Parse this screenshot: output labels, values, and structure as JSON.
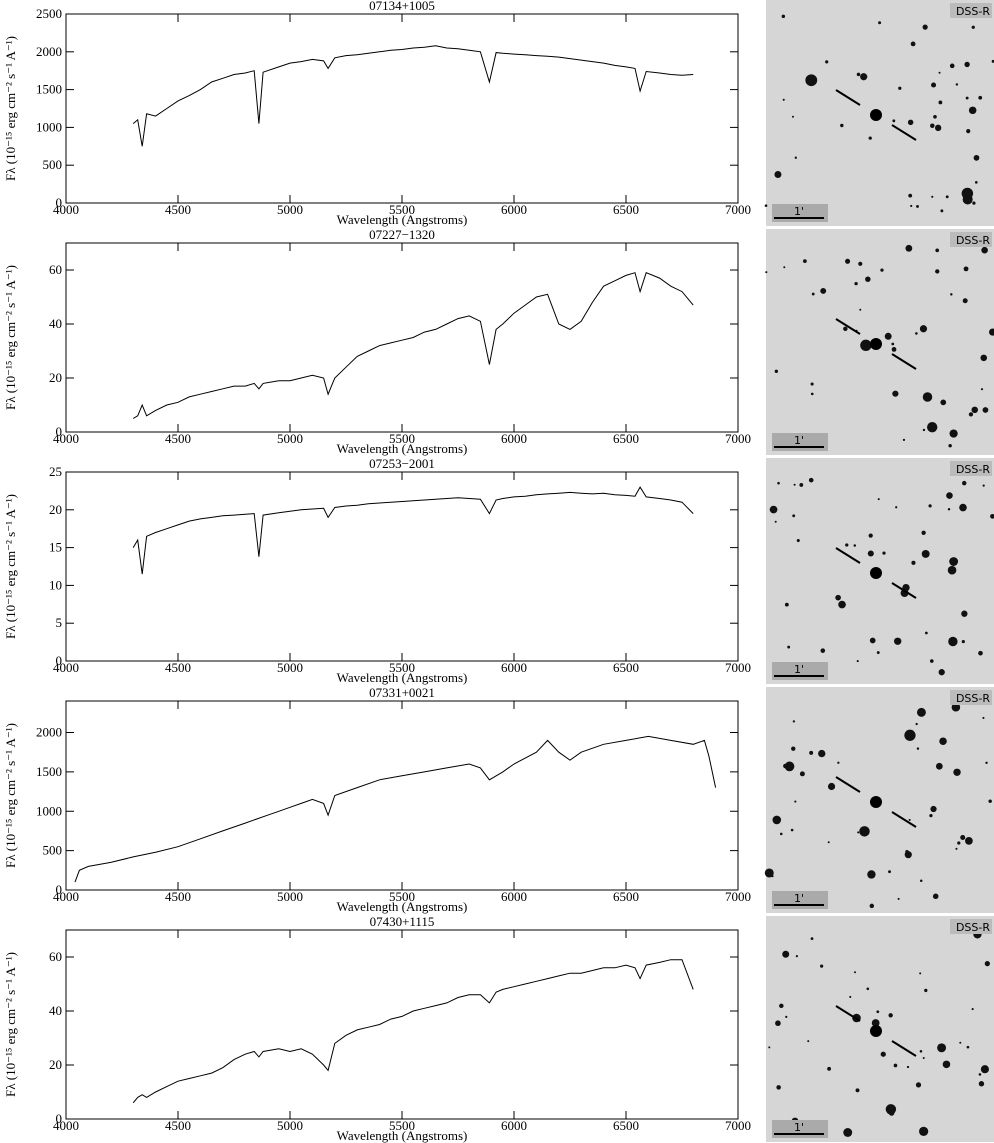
{
  "chart_data": [
    {
      "type": "line",
      "title": "07134+1005",
      "x_label": "Wavelength (Angstroms)",
      "y_label": "Fλ (10⁻¹⁵ erg cm⁻² s⁻¹ A⁻¹)",
      "color": "#000000",
      "x": [
        4300,
        4320,
        4340,
        4360,
        4400,
        4450,
        4500,
        4550,
        4600,
        4650,
        4700,
        4750,
        4800,
        4840,
        4861,
        4880,
        4950,
        5000,
        5050,
        5100,
        5150,
        5170,
        5200,
        5250,
        5300,
        5350,
        5400,
        5450,
        5500,
        5550,
        5600,
        5650,
        5700,
        5750,
        5800,
        5850,
        5890,
        5920,
        5950,
        6000,
        6050,
        6100,
        6150,
        6200,
        6250,
        6300,
        6350,
        6400,
        6450,
        6500,
        6540,
        6563,
        6590,
        6650,
        6700,
        6750,
        6800
      ],
      "values": [
        1050,
        1100,
        750,
        1180,
        1150,
        1250,
        1350,
        1420,
        1500,
        1600,
        1650,
        1700,
        1720,
        1750,
        1050,
        1730,
        1800,
        1850,
        1870,
        1900,
        1880,
        1780,
        1920,
        1950,
        1960,
        1980,
        2000,
        2020,
        2030,
        2050,
        2060,
        2080,
        2050,
        2040,
        2020,
        2000,
        1600,
        1990,
        1980,
        1970,
        1960,
        1950,
        1940,
        1930,
        1910,
        1890,
        1870,
        1850,
        1820,
        1800,
        1780,
        1480,
        1740,
        1720,
        1700,
        1690,
        1700
      ],
      "xlim": [
        4000,
        7000
      ],
      "xticks": [
        4000,
        4500,
        5000,
        5500,
        6000,
        6500,
        7000
      ],
      "ylim": [
        0,
        2500
      ],
      "yticks": [
        0,
        500,
        1000,
        1500,
        2000,
        2500
      ]
    },
    {
      "type": "line",
      "title": "07227−1320",
      "x_label": "Wavelength (Angstroms)",
      "y_label": "Fλ (10⁻¹⁵ erg cm⁻² s⁻¹ A⁻¹)",
      "color": "#000000",
      "x": [
        4300,
        4320,
        4340,
        4360,
        4400,
        4450,
        4500,
        4550,
        4600,
        4650,
        4700,
        4750,
        4800,
        4840,
        4861,
        4880,
        4950,
        5000,
        5050,
        5100,
        5150,
        5170,
        5200,
        5250,
        5300,
        5350,
        5400,
        5450,
        5500,
        5550,
        5600,
        5650,
        5700,
        5750,
        5800,
        5850,
        5890,
        5920,
        5950,
        6000,
        6050,
        6100,
        6150,
        6200,
        6250,
        6300,
        6350,
        6400,
        6450,
        6500,
        6540,
        6563,
        6590,
        6650,
        6700,
        6750,
        6800
      ],
      "values": [
        5,
        6,
        10,
        6,
        8,
        10,
        11,
        13,
        14,
        15,
        16,
        17,
        17,
        18,
        16,
        18,
        19,
        19,
        20,
        21,
        20,
        14,
        20,
        24,
        28,
        30,
        32,
        33,
        34,
        35,
        37,
        38,
        40,
        42,
        43,
        41,
        25,
        38,
        40,
        44,
        47,
        50,
        51,
        40,
        38,
        41,
        48,
        54,
        56,
        58,
        59,
        52,
        59,
        57,
        54,
        52,
        47
      ],
      "xlim": [
        4000,
        7000
      ],
      "xticks": [
        4000,
        4500,
        5000,
        5500,
        6000,
        6500,
        7000
      ],
      "ylim": [
        0,
        70
      ],
      "yticks": [
        0,
        20,
        40,
        60
      ]
    },
    {
      "type": "line",
      "title": "07253−2001",
      "x_label": "Wavelength (Angstroms)",
      "y_label": "Fλ (10⁻¹⁵ erg cm⁻² s⁻¹ A⁻¹)",
      "color": "#000000",
      "x": [
        4300,
        4320,
        4340,
        4360,
        4400,
        4450,
        4500,
        4550,
        4600,
        4650,
        4700,
        4750,
        4800,
        4840,
        4861,
        4880,
        4950,
        5000,
        5050,
        5100,
        5150,
        5170,
        5200,
        5250,
        5300,
        5350,
        5400,
        5450,
        5500,
        5550,
        5600,
        5650,
        5700,
        5750,
        5800,
        5850,
        5890,
        5920,
        5950,
        6000,
        6050,
        6100,
        6150,
        6200,
        6250,
        6300,
        6350,
        6400,
        6450,
        6500,
        6540,
        6563,
        6590,
        6650,
        6700,
        6750,
        6800
      ],
      "values": [
        15,
        16,
        11.5,
        16.5,
        17,
        17.5,
        18,
        18.5,
        18.8,
        19,
        19.2,
        19.3,
        19.4,
        19.5,
        13.8,
        19.3,
        19.6,
        19.8,
        20,
        20.1,
        20.2,
        19,
        20.3,
        20.5,
        20.6,
        20.8,
        20.9,
        21,
        21.1,
        21.2,
        21.3,
        21.4,
        21.5,
        21.6,
        21.5,
        21.4,
        19.5,
        21.3,
        21.5,
        21.7,
        21.8,
        22,
        22.1,
        22.2,
        22.3,
        22.2,
        22.1,
        22.2,
        22,
        21.9,
        21.8,
        23,
        21.7,
        21.5,
        21.3,
        21,
        19.5
      ],
      "xlim": [
        4000,
        7000
      ],
      "xticks": [
        4000,
        4500,
        5000,
        5500,
        6000,
        6500,
        7000
      ],
      "ylim": [
        0,
        25
      ],
      "yticks": [
        0,
        5,
        10,
        15,
        20,
        25
      ]
    },
    {
      "type": "line",
      "title": "07331+0021",
      "x_label": "Wavelength (Angstroms)",
      "y_label": "Fλ (10⁻¹⁵ erg cm⁻² s⁻¹ A⁻¹)",
      "color": "#000000",
      "x": [
        4040,
        4060,
        4100,
        4200,
        4300,
        4400,
        4500,
        4600,
        4700,
        4800,
        4850,
        4900,
        4950,
        5000,
        5050,
        5100,
        5150,
        5170,
        5200,
        5300,
        5400,
        5500,
        5600,
        5700,
        5800,
        5850,
        5890,
        5950,
        6000,
        6100,
        6150,
        6200,
        6250,
        6300,
        6400,
        6500,
        6600,
        6700,
        6800,
        6850,
        6870,
        6900
      ],
      "values": [
        100,
        250,
        300,
        350,
        420,
        480,
        550,
        650,
        750,
        850,
        900,
        950,
        1000,
        1050,
        1100,
        1150,
        1100,
        950,
        1200,
        1300,
        1400,
        1450,
        1500,
        1550,
        1600,
        1550,
        1400,
        1500,
        1600,
        1750,
        1900,
        1750,
        1650,
        1750,
        1850,
        1900,
        1950,
        1900,
        1850,
        1900,
        1700,
        1300
      ],
      "xlim": [
        4000,
        7000
      ],
      "xticks": [
        4000,
        4500,
        5000,
        5500,
        6000,
        6500,
        7000
      ],
      "ylim": [
        0,
        2400
      ],
      "yticks": [
        0,
        500,
        1000,
        1500,
        2000
      ]
    },
    {
      "type": "line",
      "title": "07430+1115",
      "x_label": "Wavelength (Angstroms)",
      "y_label": "Fλ (10⁻¹⁵ erg cm⁻² s⁻¹ A⁻¹)",
      "color": "#000000",
      "x": [
        4300,
        4320,
        4340,
        4360,
        4400,
        4450,
        4500,
        4550,
        4600,
        4650,
        4700,
        4750,
        4800,
        4840,
        4861,
        4880,
        4950,
        5000,
        5050,
        5100,
        5150,
        5170,
        5200,
        5250,
        5300,
        5350,
        5400,
        5450,
        5500,
        5550,
        5600,
        5650,
        5700,
        5750,
        5800,
        5850,
        5890,
        5920,
        5950,
        6000,
        6050,
        6100,
        6150,
        6200,
        6250,
        6300,
        6350,
        6400,
        6450,
        6500,
        6540,
        6563,
        6590,
        6650,
        6700,
        6750,
        6800
      ],
      "values": [
        6,
        8,
        9,
        8,
        10,
        12,
        14,
        15,
        16,
        17,
        19,
        22,
        24,
        25,
        23,
        25,
        26,
        25,
        26,
        24,
        20,
        18,
        28,
        31,
        33,
        34,
        35,
        37,
        38,
        40,
        41,
        42,
        43,
        45,
        46,
        46,
        43,
        47,
        48,
        49,
        50,
        51,
        52,
        53,
        54,
        54,
        55,
        56,
        56,
        57,
        56,
        52,
        57,
        58,
        59,
        59,
        48
      ],
      "xlim": [
        4000,
        7000
      ],
      "xticks": [
        4000,
        4500,
        5000,
        5500,
        6000,
        6500,
        7000
      ],
      "ylim": [
        0,
        70
      ],
      "yticks": [
        0,
        20,
        40,
        60
      ]
    }
  ],
  "images": [
    {
      "label": "DSS-R",
      "scale": "1'"
    },
    {
      "label": "DSS-R",
      "scale": "1'"
    },
    {
      "label": "DSS-R",
      "scale": "1'"
    },
    {
      "label": "DSS-R",
      "scale": "1'"
    },
    {
      "label": "DSS-R",
      "scale": "1'"
    }
  ]
}
